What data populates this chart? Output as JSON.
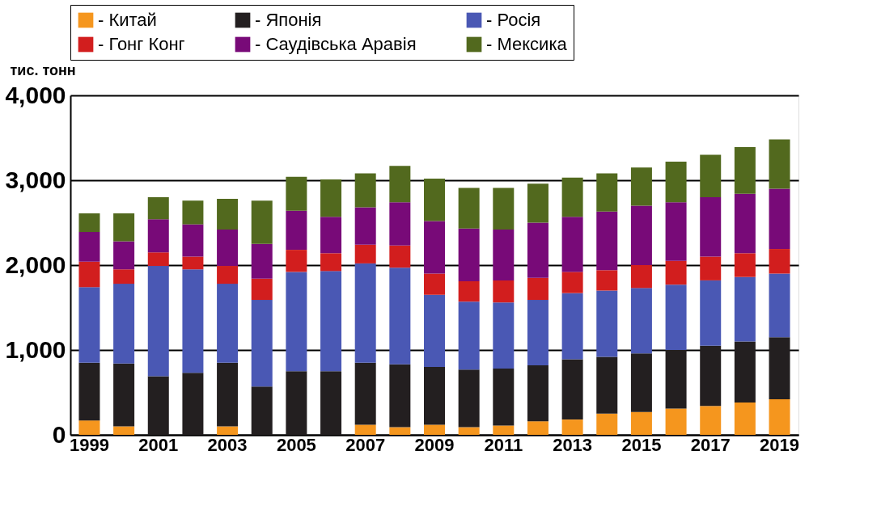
{
  "chart_data": {
    "type": "bar",
    "stacked": true,
    "ylabel": "тис. тонн",
    "categories": [
      "1999",
      null,
      "2001",
      null,
      "2003",
      null,
      "2005",
      null,
      "2007",
      null,
      "2009",
      null,
      "2011",
      null,
      "2013",
      null,
      "2015",
      null,
      "2017",
      null,
      "2019"
    ],
    "series": [
      {
        "name": "- Китай",
        "color": "#f5961e",
        "values": [
          170,
          100,
          0,
          0,
          100,
          0,
          0,
          0,
          120,
          90,
          120,
          90,
          110,
          160,
          180,
          250,
          270,
          310,
          340,
          380,
          420
        ]
      },
      {
        "name": "- Японія",
        "color": "#231f20",
        "values": [
          680,
          740,
          690,
          730,
          750,
          570,
          750,
          750,
          730,
          740,
          680,
          680,
          670,
          660,
          710,
          670,
          690,
          690,
          710,
          720,
          730
        ]
      },
      {
        "name": "- Росія",
        "color": "#4a58b4",
        "values": [
          890,
          940,
          1300,
          1220,
          930,
          1020,
          1170,
          1180,
          1170,
          1140,
          850,
          800,
          780,
          770,
          780,
          780,
          770,
          770,
          770,
          760,
          750
        ]
      },
      {
        "name": "- Гонг Конг",
        "color": "#d21e1e",
        "values": [
          300,
          170,
          160,
          150,
          210,
          250,
          260,
          210,
          220,
          260,
          250,
          240,
          260,
          260,
          250,
          240,
          270,
          280,
          280,
          280,
          290
        ]
      },
      {
        "name": "- Саудівська Аравія",
        "color": "#780a78",
        "values": [
          350,
          330,
          390,
          380,
          430,
          410,
          460,
          430,
          440,
          510,
          620,
          620,
          600,
          650,
          650,
          690,
          700,
          690,
          700,
          700,
          710
        ]
      },
      {
        "name": "- Мексика",
        "color": "#52691e",
        "values": [
          220,
          330,
          260,
          280,
          360,
          510,
          400,
          440,
          400,
          430,
          500,
          480,
          490,
          460,
          460,
          450,
          450,
          480,
          500,
          550,
          580
        ]
      }
    ],
    "ylim": [
      0,
      4000
    ],
    "yticks": [
      0,
      {
        "value": 1000,
        "label": "1,000"
      },
      {
        "value": 2000,
        "label": "2,000"
      },
      {
        "value": 3000,
        "label": "3,000"
      },
      {
        "value": 4000,
        "label": "4,000"
      }
    ],
    "grid": "y",
    "legend": "top"
  }
}
